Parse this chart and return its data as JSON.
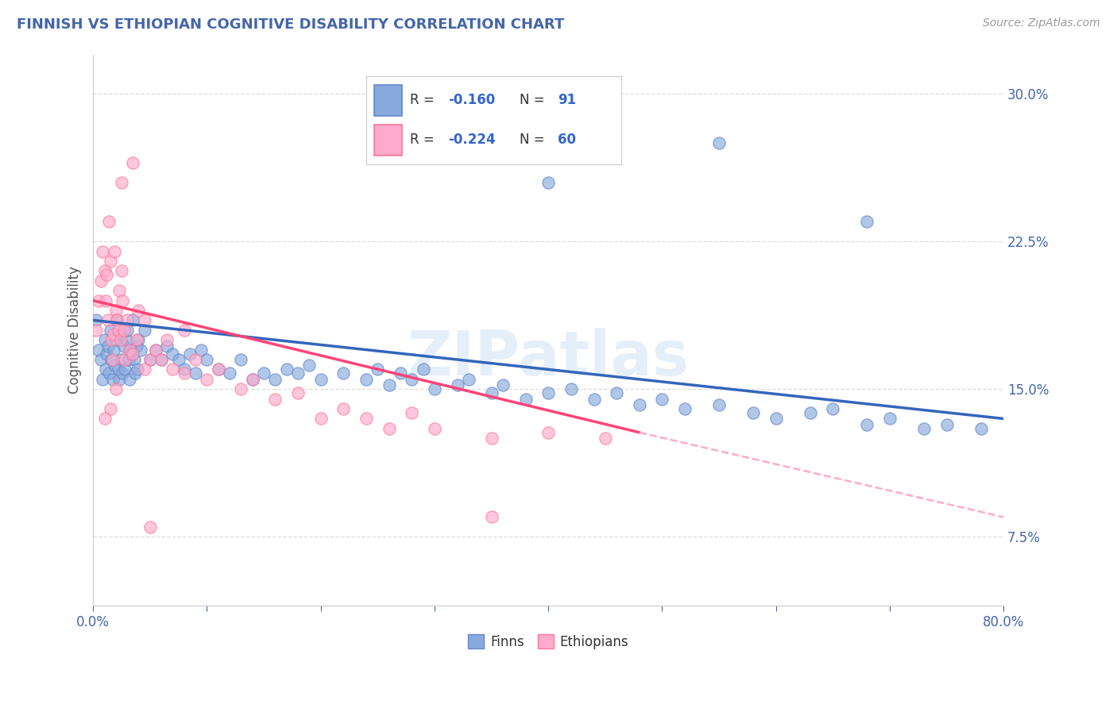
{
  "title": "FINNISH VS ETHIOPIAN COGNITIVE DISABILITY CORRELATION CHART",
  "source": "Source: ZipAtlas.com",
  "ylabel": "Cognitive Disability",
  "xlim": [
    0.0,
    80.0
  ],
  "ylim": [
    4.0,
    32.0
  ],
  "yticks": [
    7.5,
    15.0,
    22.5,
    30.0
  ],
  "finn_color": "#88AADD",
  "finn_edge_color": "#6688CC",
  "ethiopian_color": "#FFAACC",
  "ethiopian_edge_color": "#FF7799",
  "finn_line_color": "#3366BB",
  "ethiopian_line_color": "#FF4477",
  "dashed_line_color": "#FFAACC",
  "background_color": "#FFFFFF",
  "grid_color": "#DDDDDD",
  "title_color": "#4466AA",
  "source_color": "#999999",
  "legend_R_color": "#3366CC",
  "watermark_color": "#AACCEE",
  "finns_x": [
    0.3,
    0.5,
    0.7,
    0.8,
    1.0,
    1.1,
    1.2,
    1.3,
    1.4,
    1.5,
    1.6,
    1.7,
    1.8,
    1.9,
    2.0,
    2.1,
    2.2,
    2.3,
    2.4,
    2.5,
    2.6,
    2.7,
    2.8,
    2.9,
    3.0,
    3.1,
    3.2,
    3.3,
    3.4,
    3.5,
    3.6,
    3.7,
    3.8,
    3.9,
    4.0,
    4.2,
    4.5,
    5.0,
    5.5,
    6.0,
    6.5,
    7.0,
    7.5,
    8.0,
    8.5,
    9.0,
    9.5,
    10.0,
    11.0,
    12.0,
    13.0,
    14.0,
    15.0,
    16.0,
    17.0,
    18.0,
    19.0,
    20.0,
    22.0,
    24.0,
    25.0,
    26.0,
    27.0,
    28.0,
    29.0,
    30.0,
    32.0,
    33.0,
    35.0,
    36.0,
    38.0,
    40.0,
    42.0,
    44.0,
    46.0,
    48.0,
    50.0,
    52.0,
    55.0,
    58.0,
    60.0,
    63.0,
    65.0,
    68.0,
    70.0,
    73.0,
    75.0,
    78.0,
    40.0,
    55.0,
    68.0
  ],
  "finns_y": [
    18.5,
    17.0,
    16.5,
    15.5,
    17.5,
    16.0,
    16.8,
    17.2,
    15.8,
    18.0,
    16.5,
    15.5,
    17.0,
    16.2,
    17.5,
    18.5,
    16.0,
    15.5,
    17.8,
    16.5,
    15.8,
    17.2,
    16.0,
    17.5,
    18.0,
    16.5,
    15.5,
    17.0,
    16.8,
    18.5,
    16.5,
    15.8,
    17.2,
    16.0,
    17.5,
    17.0,
    18.0,
    16.5,
    17.0,
    16.5,
    17.2,
    16.8,
    16.5,
    16.0,
    16.8,
    15.8,
    17.0,
    16.5,
    16.0,
    15.8,
    16.5,
    15.5,
    15.8,
    15.5,
    16.0,
    15.8,
    16.2,
    15.5,
    15.8,
    15.5,
    16.0,
    15.2,
    15.8,
    15.5,
    16.0,
    15.0,
    15.2,
    15.5,
    14.8,
    15.2,
    14.5,
    14.8,
    15.0,
    14.5,
    14.8,
    14.2,
    14.5,
    14.0,
    14.2,
    13.8,
    13.5,
    13.8,
    14.0,
    13.2,
    13.5,
    13.0,
    13.2,
    13.0,
    25.5,
    27.5,
    23.5
  ],
  "ethiopians_x": [
    0.3,
    0.5,
    0.7,
    0.8,
    1.0,
    1.1,
    1.2,
    1.3,
    1.5,
    1.6,
    1.7,
    1.8,
    1.9,
    2.0,
    2.1,
    2.2,
    2.3,
    2.4,
    2.5,
    2.6,
    2.7,
    2.8,
    3.0,
    3.2,
    3.5,
    3.8,
    4.0,
    4.5,
    5.0,
    5.5,
    6.0,
    6.5,
    7.0,
    8.0,
    9.0,
    10.0,
    11.0,
    13.0,
    14.0,
    16.0,
    18.0,
    20.0,
    22.0,
    24.0,
    26.0,
    28.0,
    30.0,
    35.0,
    40.0,
    45.0,
    1.4,
    2.5,
    3.5,
    5.0,
    35.0,
    8.0,
    4.5,
    2.0,
    1.5,
    1.0
  ],
  "ethiopians_y": [
    18.0,
    19.5,
    20.5,
    22.0,
    21.0,
    19.5,
    20.8,
    18.5,
    21.5,
    17.5,
    16.5,
    17.8,
    22.0,
    19.0,
    18.5,
    18.0,
    20.0,
    17.5,
    21.0,
    19.5,
    18.0,
    16.5,
    18.5,
    17.0,
    16.8,
    17.5,
    19.0,
    18.5,
    16.5,
    17.0,
    16.5,
    17.5,
    16.0,
    15.8,
    16.5,
    15.5,
    16.0,
    15.0,
    15.5,
    14.5,
    14.8,
    13.5,
    14.0,
    13.5,
    13.0,
    13.8,
    13.0,
    12.5,
    12.8,
    12.5,
    23.5,
    25.5,
    26.5,
    8.0,
    8.5,
    18.0,
    16.0,
    15.0,
    14.0,
    13.5
  ],
  "finn_trend_x0": 0.0,
  "finn_trend_y0": 18.5,
  "finn_trend_x1": 80.0,
  "finn_trend_y1": 13.5,
  "eth_trend_solid_x0": 0.0,
  "eth_trend_solid_y0": 19.5,
  "eth_trend_solid_x1": 48.0,
  "eth_trend_solid_y1": 12.8,
  "eth_trend_dash_x0": 48.0,
  "eth_trend_dash_y0": 12.8,
  "eth_trend_dash_x1": 80.0,
  "eth_trend_dash_y1": 8.5
}
